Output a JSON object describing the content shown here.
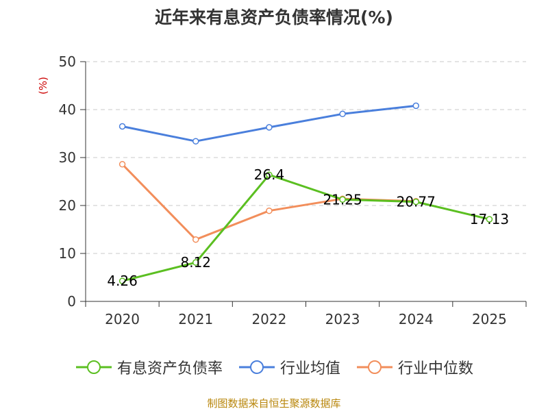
{
  "chart_data": {
    "type": "line",
    "title": "近年来有息资产负债率情况(%)",
    "ylabel": "(%)",
    "xlabel": "",
    "categories": [
      "2020",
      "2021",
      "2022",
      "2023",
      "2024",
      "2025"
    ],
    "ylim": [
      0,
      50
    ],
    "yticks": [
      0,
      10,
      20,
      30,
      40,
      50
    ],
    "grid": true,
    "legend_position": "bottom",
    "series": [
      {
        "name": "有息资产负债率",
        "color": "#5bbf21",
        "values": [
          4.26,
          8.12,
          26.4,
          21.25,
          20.77,
          17.13
        ],
        "labels": [
          "4.26",
          "8.12",
          "26.4",
          "21.25",
          "20.77",
          "17.13"
        ]
      },
      {
        "name": "行业均值",
        "color": "#4a7fdc",
        "values": [
          36.5,
          33.4,
          36.3,
          39.1,
          40.8,
          null
        ]
      },
      {
        "name": "行业中位数",
        "color": "#f28e5b",
        "values": [
          28.6,
          12.9,
          18.9,
          21.4,
          20.9,
          null
        ]
      }
    ]
  },
  "source_note": "制图数据来自恒生聚源数据库"
}
